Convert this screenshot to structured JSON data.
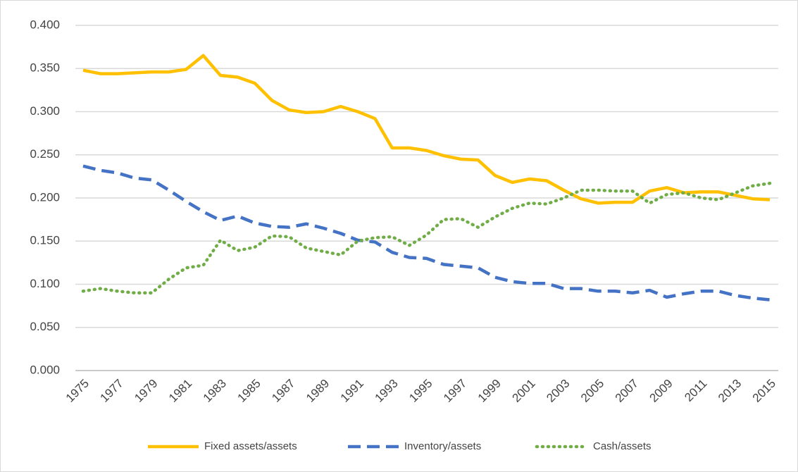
{
  "chart_data": {
    "type": "line",
    "x": [
      1975,
      1976,
      1977,
      1978,
      1979,
      1980,
      1981,
      1982,
      1983,
      1984,
      1985,
      1986,
      1987,
      1988,
      1989,
      1990,
      1991,
      1992,
      1993,
      1994,
      1995,
      1996,
      1997,
      1998,
      1999,
      2000,
      2001,
      2002,
      2003,
      2004,
      2005,
      2006,
      2007,
      2008,
      2009,
      2010,
      2011,
      2012,
      2013,
      2014,
      2015
    ],
    "xlim": [
      1975,
      2015
    ],
    "xticks": [
      1975,
      1977,
      1979,
      1981,
      1983,
      1985,
      1987,
      1989,
      1991,
      1993,
      1995,
      1997,
      1999,
      2001,
      2003,
      2005,
      2007,
      2009,
      2011,
      2013,
      2015
    ],
    "ylim": [
      0,
      0.4
    ],
    "yticks": [
      {
        "value": 0,
        "label": "0.000"
      },
      {
        "value": 0.05,
        "label": "0.050"
      },
      {
        "value": 0.1,
        "label": "0.100"
      },
      {
        "value": 0.15,
        "label": "0.150"
      },
      {
        "value": 0.2,
        "label": "0.200"
      },
      {
        "value": 0.25,
        "label": "0.250"
      },
      {
        "value": 0.3,
        "label": "0.300"
      },
      {
        "value": 0.35,
        "label": "0.350"
      },
      {
        "value": 0.4,
        "label": "0.400"
      }
    ],
    "grid": true,
    "legend": "bottom",
    "series": [
      {
        "name": "Fixed assets/assets",
        "color": "#ffc000",
        "dash": "solid",
        "values": [
          0.348,
          0.344,
          0.344,
          0.345,
          0.346,
          0.346,
          0.349,
          0.365,
          0.342,
          0.34,
          0.333,
          0.313,
          0.302,
          0.299,
          0.3,
          0.306,
          0.3,
          0.292,
          0.258,
          0.258,
          0.255,
          0.249,
          0.245,
          0.244,
          0.226,
          0.218,
          0.222,
          0.22,
          0.209,
          0.199,
          0.194,
          0.195,
          0.195,
          0.208,
          0.212,
          0.206,
          0.207,
          0.207,
          0.203,
          0.199,
          0.198
        ]
      },
      {
        "name": "Inventory/assets",
        "color": "#4472c4",
        "dash": "dashed",
        "values": [
          0.237,
          0.232,
          0.229,
          0.223,
          0.221,
          0.209,
          0.196,
          0.184,
          0.174,
          0.179,
          0.171,
          0.167,
          0.166,
          0.17,
          0.165,
          0.159,
          0.151,
          0.149,
          0.137,
          0.131,
          0.13,
          0.123,
          0.121,
          0.119,
          0.108,
          0.103,
          0.101,
          0.101,
          0.095,
          0.095,
          0.092,
          0.092,
          0.09,
          0.093,
          0.085,
          0.089,
          0.092,
          0.092,
          0.087,
          0.084,
          0.082
        ]
      },
      {
        "name": "Cash/assets",
        "color": "#70ad47",
        "dash": "dotted",
        "values": [
          0.092,
          0.095,
          0.092,
          0.09,
          0.09,
          0.106,
          0.119,
          0.122,
          0.151,
          0.139,
          0.143,
          0.156,
          0.155,
          0.142,
          0.138,
          0.134,
          0.15,
          0.154,
          0.155,
          0.145,
          0.157,
          0.175,
          0.176,
          0.166,
          0.178,
          0.188,
          0.194,
          0.193,
          0.2,
          0.209,
          0.209,
          0.208,
          0.208,
          0.194,
          0.204,
          0.206,
          0.2,
          0.198,
          0.206,
          0.214,
          0.217
        ]
      }
    ]
  }
}
